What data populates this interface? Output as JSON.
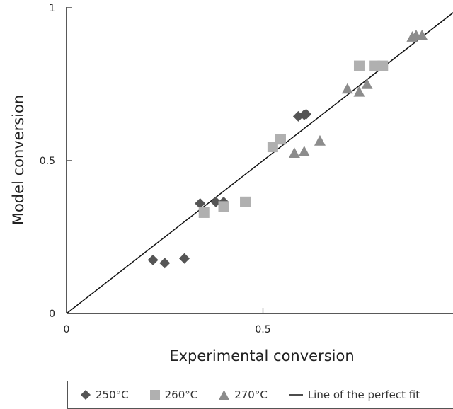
{
  "chart_data": {
    "type": "scatter",
    "xlabel": "Experimental conversion",
    "ylabel": "Model conversion",
    "xlim": [
      0,
      1
    ],
    "ylim": [
      0,
      1
    ],
    "x_ticks": [
      "0",
      "0.5"
    ],
    "x_tick_values": [
      0,
      0.5
    ],
    "y_ticks": [
      "0",
      "0.5",
      "1"
    ],
    "y_tick_values": [
      0,
      0.5,
      1
    ],
    "grid": false,
    "legend_position": "bottom",
    "series": [
      {
        "name": "250°C",
        "marker": "diamond",
        "color": "#555555",
        "points": [
          [
            0.22,
            0.175
          ],
          [
            0.25,
            0.165
          ],
          [
            0.3,
            0.18
          ],
          [
            0.34,
            0.36
          ],
          [
            0.38,
            0.365
          ],
          [
            0.4,
            0.365
          ],
          [
            0.59,
            0.645
          ],
          [
            0.605,
            0.65
          ],
          [
            0.61,
            0.652
          ]
        ]
      },
      {
        "name": "260°C",
        "marker": "square",
        "color": "#b0b0b0",
        "points": [
          [
            0.35,
            0.33
          ],
          [
            0.4,
            0.35
          ],
          [
            0.455,
            0.365
          ],
          [
            0.525,
            0.545
          ],
          [
            0.545,
            0.57
          ],
          [
            0.745,
            0.81
          ],
          [
            0.785,
            0.81
          ],
          [
            0.805,
            0.81
          ]
        ]
      },
      {
        "name": "270°C",
        "marker": "triangle",
        "color": "#8c8c8c",
        "points": [
          [
            0.58,
            0.525
          ],
          [
            0.605,
            0.53
          ],
          [
            0.645,
            0.565
          ],
          [
            0.715,
            0.735
          ],
          [
            0.745,
            0.725
          ],
          [
            0.765,
            0.75
          ],
          [
            0.88,
            0.905
          ],
          [
            0.89,
            0.91
          ],
          [
            0.905,
            0.91
          ]
        ]
      }
    ],
    "reference_line": {
      "name": "Line of the perfect fit",
      "from": [
        0,
        0
      ],
      "to": [
        1,
        1
      ],
      "color": "#111111"
    }
  }
}
